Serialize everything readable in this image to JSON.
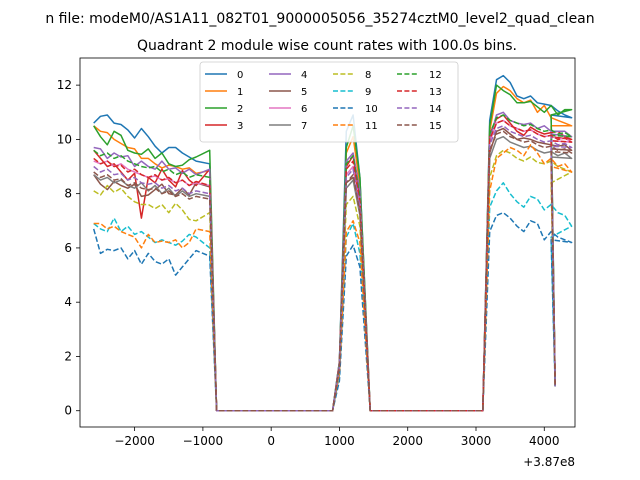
{
  "chart_data": {
    "type": "line",
    "suptitle": "n file: modeM0/AS1A11_082T01_9000005056_35274cztM0_level2_quad_clean",
    "title": "Quadrant 2 module wise count rates with 100.0s bins.",
    "xlabel": "",
    "ylabel": "",
    "x_offset_label": "+3.87e8",
    "xlim": [
      -2800,
      4450
    ],
    "ylim": [
      -0.6,
      13.0
    ],
    "xticks": [
      -2000,
      -1000,
      0,
      1000,
      2000,
      3000,
      4000
    ],
    "xtick_labels": [
      "−2000",
      "−1000",
      "0",
      "1000",
      "2000",
      "3000",
      "4000"
    ],
    "yticks": [
      0,
      2,
      4,
      6,
      8,
      10,
      12
    ],
    "ytick_labels": [
      "0",
      "2",
      "4",
      "6",
      "8",
      "10",
      "12"
    ],
    "legend_position": "upper center",
    "colors": [
      "#1f77b4",
      "#ff7f0e",
      "#2ca02c",
      "#d62728",
      "#9467bd",
      "#8c564b",
      "#e377c2",
      "#7f7f7f",
      "#bcbd22",
      "#17becf"
    ],
    "series": [
      {
        "name": "0",
        "color": "#1f77b4",
        "dash": "solid",
        "seg1": [
          10.6,
          10.85,
          10.9,
          10.6,
          10.55,
          10.35,
          10.05,
          10.4,
          10.1,
          9.75,
          9.5,
          9.7,
          9.7,
          9.5,
          9.35,
          9.2,
          9.1
        ],
        "peak": [
          1.8,
          10.3,
          10.9,
          8.6
        ],
        "seg2": [
          10.7,
          12.2,
          12.35,
          12.1,
          11.6,
          11.5,
          11.6,
          11.35,
          11.3,
          11.25,
          11.05,
          10.9,
          10.8,
          10.9
        ]
      },
      {
        "name": "1",
        "color": "#ff7f0e",
        "dash": "solid",
        "seg1": [
          10.5,
          10.3,
          10.25,
          10.0,
          9.85,
          9.7,
          9.65,
          9.3,
          9.3,
          9.1,
          8.95,
          9.05,
          9.0,
          8.9,
          8.95,
          8.75,
          8.85
        ],
        "peak": [
          1.7,
          9.5,
          10.1,
          8.3
        ],
        "seg2": [
          10.3,
          11.7,
          11.95,
          11.8,
          11.5,
          11.35,
          11.45,
          11.0,
          11.25,
          10.8,
          10.7,
          10.6,
          10.5,
          10.5
        ]
      },
      {
        "name": "2",
        "color": "#2ca02c",
        "dash": "solid",
        "seg1": [
          10.5,
          10.1,
          9.8,
          10.3,
          10.15,
          9.6,
          9.5,
          9.45,
          9.65,
          9.3,
          9.5,
          9.1,
          9.0,
          9.05,
          9.25,
          9.35,
          9.6
        ],
        "peak": [
          1.8,
          9.7,
          10.5,
          8.6
        ],
        "seg2": [
          10.5,
          12.0,
          11.8,
          11.65,
          11.35,
          11.35,
          11.4,
          11.2,
          11.0,
          11.25,
          10.9,
          11.1,
          11.1,
          10.9
        ]
      },
      {
        "name": "3",
        "color": "#d62728",
        "dash": "solid",
        "seg1": [
          9.6,
          9.3,
          9.0,
          9.1,
          8.8,
          8.5,
          8.75,
          7.1,
          8.6,
          8.4,
          8.9,
          8.5,
          8.25,
          8.85,
          8.5,
          8.3,
          8.9
        ],
        "peak": [
          1.7,
          9.0,
          9.4,
          7.8
        ],
        "seg2": [
          10.2,
          10.75,
          10.9,
          10.6,
          10.3,
          10.15,
          10.45,
          10.3,
          10.2,
          10.25,
          10.3,
          10.1,
          10.0,
          10.1
        ]
      },
      {
        "name": "4",
        "color": "#9467bd",
        "dash": "solid",
        "seg1": [
          9.7,
          9.65,
          9.3,
          9.5,
          9.35,
          9.4,
          9.0,
          9.2,
          9.0,
          8.9,
          9.2,
          8.9,
          8.95,
          8.75,
          8.9,
          8.7,
          8.9
        ],
        "peak": [
          1.8,
          9.2,
          9.5,
          8.1
        ],
        "seg2": [
          10.0,
          10.9,
          11.0,
          10.7,
          10.6,
          10.55,
          10.6,
          10.4,
          10.5,
          10.3,
          10.3,
          10.3,
          10.1,
          10.2
        ]
      },
      {
        "name": "5",
        "color": "#8c564b",
        "dash": "solid",
        "seg1": [
          8.7,
          8.35,
          8.15,
          8.45,
          8.3,
          8.2,
          8.35,
          7.9,
          7.95,
          8.15,
          8.35,
          8.0,
          7.95,
          8.2,
          7.95,
          8.4,
          8.25
        ],
        "peak": [
          1.6,
          8.4,
          8.6,
          7.4
        ],
        "seg2": [
          9.5,
          10.3,
          10.4,
          10.2,
          10.0,
          10.05,
          10.0,
          9.9,
          9.85,
          9.8,
          9.75,
          9.8,
          9.6,
          9.65
        ]
      },
      {
        "name": "6",
        "color": "#e377c2",
        "dash": "solid",
        "seg1": [
          9.2,
          9.1,
          9.2,
          9.0,
          9.1,
          8.9,
          8.8,
          8.7,
          8.6,
          8.65,
          8.5,
          8.55,
          8.4,
          8.5,
          8.3,
          8.4,
          8.3
        ],
        "peak": [
          1.7,
          8.7,
          9.0,
          7.6
        ],
        "seg2": [
          9.9,
          10.6,
          10.7,
          10.5,
          10.4,
          10.3,
          10.35,
          10.2,
          10.1,
          10.15,
          10.0,
          10.05,
          9.9,
          9.95
        ]
      },
      {
        "name": "7",
        "color": "#7f7f7f",
        "dash": "solid",
        "seg1": [
          8.7,
          8.5,
          8.6,
          8.4,
          8.5,
          8.3,
          8.2,
          8.4,
          8.1,
          8.3,
          8.0,
          8.2,
          7.9,
          8.1,
          7.9,
          8.0,
          7.9
        ],
        "peak": [
          1.6,
          8.2,
          8.5,
          7.2
        ],
        "seg2": [
          9.3,
          10.0,
          10.1,
          9.9,
          9.8,
          9.7,
          9.75,
          9.6,
          9.5,
          9.55,
          9.4,
          9.5,
          9.3,
          9.35
        ]
      },
      {
        "name": "8",
        "color": "#bcbd22",
        "dash": "dash",
        "seg1": [
          8.1,
          7.95,
          8.3,
          8.05,
          8.2,
          7.9,
          7.7,
          7.6,
          7.6,
          7.45,
          7.6,
          7.3,
          7.65,
          7.4,
          7.05,
          7.0,
          7.3
        ],
        "peak": [
          1.4,
          7.6,
          7.9,
          6.8
        ],
        "seg2": [
          8.6,
          9.4,
          9.6,
          9.5,
          9.3,
          9.2,
          9.35,
          9.15,
          9.1,
          9.2,
          9.0,
          8.9,
          8.8,
          8.4
        ]
      },
      {
        "name": "9",
        "color": "#17becf",
        "dash": "dash",
        "seg1": [
          6.9,
          6.7,
          6.6,
          7.1,
          6.6,
          6.8,
          6.5,
          6.6,
          6.4,
          6.2,
          6.3,
          6.2,
          6.1,
          6.25,
          6.5,
          6.4,
          6.0
        ],
        "peak": [
          1.3,
          6.4,
          6.9,
          5.8
        ],
        "seg2": [
          7.5,
          8.1,
          8.4,
          8.0,
          7.7,
          7.5,
          7.9,
          7.8,
          7.4,
          7.6,
          7.3,
          7.2,
          6.8,
          6.4
        ]
      },
      {
        "name": "10",
        "color": "#1f77b4",
        "dash": "dash",
        "seg1": [
          6.7,
          5.8,
          5.95,
          5.9,
          6.0,
          5.6,
          5.9,
          5.4,
          5.8,
          5.5,
          5.4,
          5.6,
          5.0,
          5.3,
          5.6,
          5.9,
          5.7
        ],
        "peak": [
          1.1,
          5.7,
          6.1,
          5.3
        ],
        "seg2": [
          6.6,
          7.2,
          7.3,
          7.1,
          6.8,
          6.6,
          7.0,
          6.9,
          6.3,
          6.6,
          6.4,
          6.3,
          6.2,
          6.3
        ]
      },
      {
        "name": "11",
        "color": "#ff7f0e",
        "dash": "dash",
        "seg1": [
          6.9,
          6.9,
          6.7,
          6.8,
          6.6,
          6.5,
          6.4,
          6.0,
          6.5,
          6.2,
          6.25,
          6.2,
          6.3,
          6.0,
          6.2,
          6.7,
          6.6
        ],
        "peak": [
          1.4,
          6.6,
          7.0,
          6.2
        ],
        "seg2": [
          8.1,
          9.3,
          9.5,
          9.7,
          9.6,
          9.4,
          9.8,
          9.5,
          9.1,
          9.3,
          9.0,
          9.1,
          8.8,
          9.0
        ]
      },
      {
        "name": "12",
        "color": "#2ca02c",
        "dash": "dash",
        "seg1": [
          9.6,
          9.4,
          9.5,
          9.3,
          9.4,
          9.2,
          9.1,
          9.0,
          8.95,
          9.0,
          8.8,
          8.9,
          8.7,
          8.8,
          8.6,
          8.7,
          8.6
        ],
        "peak": [
          1.7,
          9.1,
          9.4,
          7.9
        ],
        "seg2": [
          10.2,
          10.8,
          10.9,
          10.7,
          10.6,
          10.5,
          10.55,
          10.4,
          10.3,
          10.35,
          10.2,
          10.25,
          10.1,
          10.15
        ]
      },
      {
        "name": "13",
        "color": "#d62728",
        "dash": "dash",
        "seg1": [
          9.3,
          9.1,
          9.2,
          9.0,
          9.05,
          8.8,
          8.9,
          8.7,
          8.6,
          8.7,
          8.5,
          8.6,
          8.4,
          8.5,
          8.3,
          8.45,
          8.3
        ],
        "peak": [
          1.7,
          8.9,
          9.2,
          7.7
        ],
        "seg2": [
          10.0,
          10.6,
          10.7,
          10.5,
          10.4,
          10.3,
          10.35,
          10.2,
          10.1,
          10.15,
          10.0,
          10.05,
          9.9,
          9.95
        ]
      },
      {
        "name": "14",
        "color": "#9467bd",
        "dash": "dash",
        "seg1": [
          9.0,
          8.8,
          8.9,
          8.7,
          8.75,
          8.5,
          8.6,
          8.4,
          8.35,
          8.4,
          8.2,
          8.3,
          8.1,
          8.2,
          8.0,
          8.1,
          8.0
        ],
        "peak": [
          1.6,
          8.6,
          8.9,
          7.5
        ],
        "seg2": [
          9.8,
          10.4,
          10.5,
          10.3,
          10.2,
          10.1,
          10.15,
          10.0,
          9.9,
          9.95,
          9.8,
          9.85,
          9.7,
          9.75
        ]
      },
      {
        "name": "15",
        "color": "#8c564b",
        "dash": "dash",
        "seg1": [
          8.8,
          8.6,
          8.7,
          8.5,
          8.55,
          8.3,
          8.4,
          8.2,
          8.15,
          8.2,
          8.0,
          8.1,
          7.9,
          8.0,
          7.8,
          7.9,
          7.8
        ],
        "peak": [
          1.6,
          8.4,
          8.7,
          7.3
        ],
        "seg2": [
          9.6,
          10.2,
          10.3,
          10.1,
          10.0,
          9.9,
          9.95,
          9.8,
          9.7,
          9.75,
          9.6,
          9.65,
          9.5,
          9.55
        ]
      }
    ],
    "seg1_x": [
      -2600,
      -2500,
      -2400,
      -2300,
      -2200,
      -2100,
      -2000,
      -1900,
      -1800,
      -1700,
      -1600,
      -1500,
      -1400,
      -1300,
      -1200,
      -1100,
      -900
    ],
    "peak_x": [
      1000,
      1100,
      1200,
      1300
    ],
    "seg2_x": [
      3200,
      3300,
      3400,
      3500,
      3600,
      3700,
      3800,
      3900,
      4000,
      4100,
      4200,
      4300,
      4400,
      4100
    ],
    "zero_ranges": [
      [
        -800,
        900
      ],
      [
        1450,
        3100
      ]
    ],
    "end_value": 0.9
  }
}
